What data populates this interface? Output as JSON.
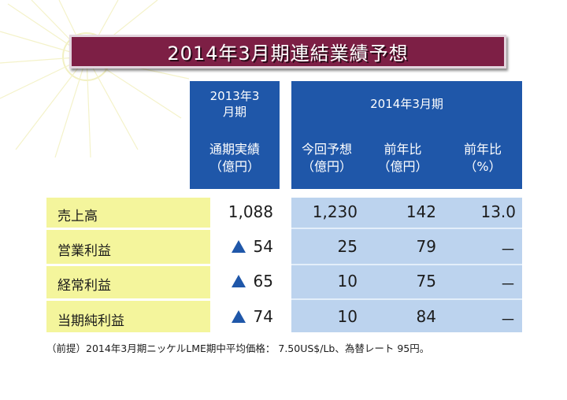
{
  "title": "2014年3月期連結業績予想",
  "headers": {
    "fy2013_period": "2013年3月期",
    "fy2013_col": "通期実績（億円）",
    "fy2014_period": "2014年3月期",
    "forecast": "今回予想（億円）",
    "yoy_amount": "前年比（億円）",
    "yoy_pct": "前年比（%）"
  },
  "rows": [
    {
      "label": "売上高",
      "actual": "1,088",
      "actual_negative": false,
      "forecast": "1,230",
      "yoy_amount": "142",
      "yoy_pct": "13.0"
    },
    {
      "label": "営業利益",
      "actual": "54",
      "actual_negative": true,
      "forecast": "25",
      "yoy_amount": "79",
      "yoy_pct": "－"
    },
    {
      "label": "経常利益",
      "actual": "65",
      "actual_negative": true,
      "forecast": "10",
      "yoy_amount": "75",
      "yoy_pct": "－"
    },
    {
      "label": "当期純利益",
      "actual": "74",
      "actual_negative": true,
      "forecast": "10",
      "yoy_amount": "84",
      "yoy_pct": "－"
    }
  ],
  "footnote": "（前提）2014年3月期ニッケルLME期中平均価格：  7.50US$/Lb、為替レート  95円。",
  "colors": {
    "title_bg": "#7d1f45",
    "header_bg": "#1f57a9",
    "label_bg": "#f4f59c",
    "value_bg": "#bcd3ee",
    "negative_marker": "#1f57a9"
  },
  "icons": {
    "negative_marker": "triangle-up-icon"
  }
}
